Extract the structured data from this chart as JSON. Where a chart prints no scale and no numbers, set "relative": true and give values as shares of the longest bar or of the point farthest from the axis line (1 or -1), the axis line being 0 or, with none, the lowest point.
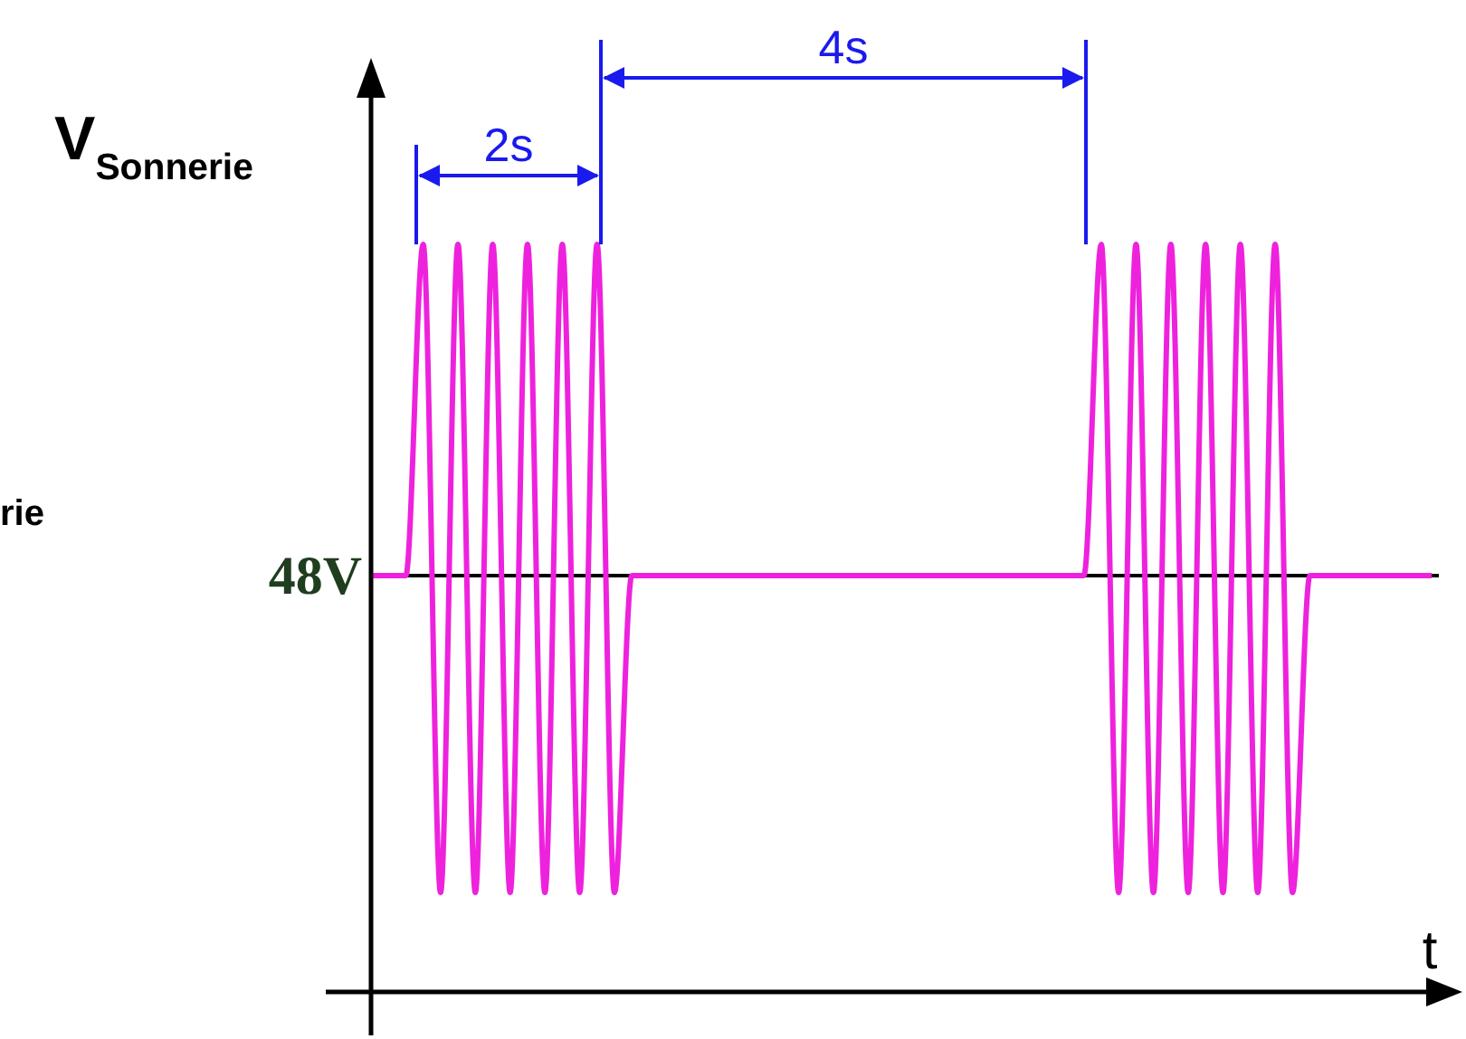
{
  "chart_data": {
    "type": "line",
    "relative": true,
    "xlabel": "t",
    "ylabel": "V$_{Sonnerie}$",
    "categories": [
      null,
      null,
      null,
      null,
      null,
      null,
      null,
      null,
      null,
      null,
      null,
      null,
      null,
      null,
      null,
      null,
      null,
      null,
      null,
      null,
      null,
      null,
      null,
      null,
      null,
      null,
      null,
      null,
      null,
      null,
      null,
      null,
      null,
      null,
      null,
      null,
      null,
      null,
      null,
      null,
      null,
      null,
      null,
      null,
      null,
      null,
      null,
      null,
      null,
      null,
      null,
      null,
      null,
      null,
      null,
      null,
      null,
      null,
      null,
      null,
      null,
      null
    ],
    "series": [
      {
        "color": "#ee22dd",
        "values": [
          0.557,
          0.557,
          0.557,
          1,
          0.133,
          1,
          0.133,
          1,
          0.133,
          1,
          0.133,
          1,
          0.133,
          1,
          0.133,
          0.557,
          0.557,
          0.557,
          0.557,
          0.557,
          0.557,
          0.557,
          0.557,
          0.557,
          0.557,
          0.557,
          0.557,
          0.557,
          0.557,
          0.557,
          0.557,
          0.557,
          0.557,
          0.557,
          0.557,
          0.557,
          0.557,
          0.557,
          0.557,
          0.557,
          0.557,
          0.557,
          1,
          0.133,
          1,
          0.133,
          1,
          0.133,
          1,
          0.133,
          1,
          0.133,
          1,
          0.133,
          0.557,
          0.557,
          0.557,
          0.557,
          0.557,
          0.557,
          0.557,
          0.557
        ]
      }
    ],
    "ref_lines": [
      {
        "axis": "y",
        "value": 0.557,
        "label": "48V",
        "color": "#000000"
      }
    ],
    "annotations": [
      "2s",
      "4s",
      "rie"
    ]
  }
}
